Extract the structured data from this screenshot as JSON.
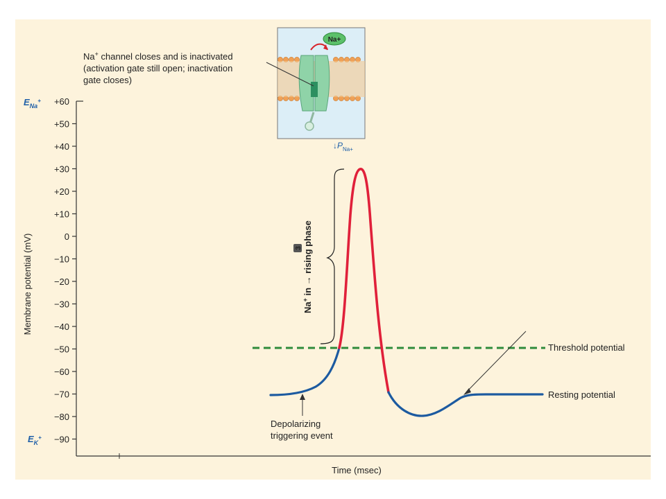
{
  "y_axis": {
    "label": "Membrane potential (mV)",
    "ticks": [
      {
        "value": 60,
        "text": "+60"
      },
      {
        "value": 50,
        "text": "+50"
      },
      {
        "value": 40,
        "text": "+40"
      },
      {
        "value": 30,
        "text": "+30"
      },
      {
        "value": 20,
        "text": "+20"
      },
      {
        "value": 10,
        "text": "+10"
      },
      {
        "value": 0,
        "text": "0"
      },
      {
        "value": -10,
        "text": "−10"
      },
      {
        "value": -20,
        "text": "−20"
      },
      {
        "value": -30,
        "text": "−30"
      },
      {
        "value": -40,
        "text": "−40"
      },
      {
        "value": -50,
        "text": "−50"
      },
      {
        "value": -60,
        "text": "−60"
      },
      {
        "value": -70,
        "text": "−70"
      },
      {
        "value": -80,
        "text": "−80"
      },
      {
        "value": -90,
        "text": "−90"
      }
    ],
    "ena_label": "E",
    "ena_sub": "Na",
    "ena_sup": "+",
    "ek_label": "E",
    "ek_sub": "K",
    "ek_sup": "+"
  },
  "x_axis": {
    "label": "Time (msec)"
  },
  "threshold": {
    "value": -50,
    "label": "Threshold potential",
    "color": "#2e8b3a"
  },
  "resting": {
    "value": -70,
    "label": "Resting potential"
  },
  "trigger_label": [
    "Depolarizing",
    "triggering event"
  ],
  "channel_note": {
    "line1_a": "Na",
    "line1_sup": "+",
    "line1_b": " channel closes and is inactivated",
    "line2": "(activation gate still open; inactivation",
    "line3": "gate closes)"
  },
  "ion_label": "Na+",
  "pna": {
    "arrow": "↓",
    "p": "P",
    "sub": "Na+"
  },
  "phase": {
    "step": "3",
    "text_a": "Na",
    "text_sup": "+",
    "text_b": " in → rising phase"
  },
  "colors": {
    "rising": "#e0203a",
    "baseline": "#1c5aa0",
    "axis_blue": "#1f5fa8",
    "background": "#fdf3dc",
    "membrane": "#f0a055",
    "channel": "#8fd3a8",
    "ion": "#5cc06a"
  }
}
